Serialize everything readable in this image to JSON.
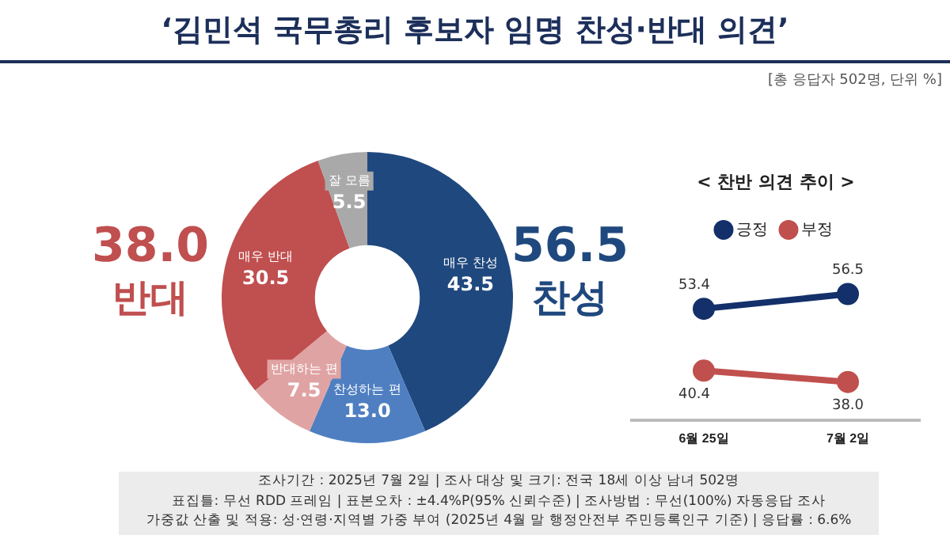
{
  "chart_data": [
    {
      "type": "donut",
      "title": "‘김민석 국무총리 후보자 임명 찬성·반대 의견’",
      "categories": [
        "매우 찬성",
        "찬성하는 편",
        "반대하는 편",
        "매우 반대",
        "잘 모름"
      ],
      "values": [
        43.5,
        13.0,
        7.5,
        30.5,
        5.5
      ],
      "value_labels": [
        "43.5",
        "13.0",
        "7.5",
        "30.5",
        "5.5"
      ],
      "colors": [
        "#1f487e",
        "#4f7fc1",
        "#e0a3a3",
        "#c04f4f",
        "#a9a9a9"
      ],
      "annotations": [
        "[총 응답자 502명, 단위 %]",
        "38.0",
        "반대",
        "56.5",
        "찬성",
        "조사기간 : 2025년 7월 2일 | 조사 대상 및 크기: 전국 18세 이상 남녀 502명",
        "표집틀: 무선 RDD 프레임 | 표본오차 : ±4.4%P(95% 신뢰수준) | 조사방법 : 무선(100%) 자동응답 조사",
        "가중값 산출 및 적용: 성·연령·지역별 가중 부여 (2025년 4월 말 행정안전부 주민등록인구 기준) | 응답률 : 6.6%"
      ],
      "legend": false
    },
    {
      "type": "line",
      "title": "< 찬반 의견 추이 >",
      "categories": [
        "6월 25일",
        "7월 2일"
      ],
      "series": [
        {
          "name": "긍정",
          "color": "#13306a",
          "values": [
            53.4,
            56.5
          ],
          "value_labels": [
            "53.4",
            "56.5"
          ]
        },
        {
          "name": "부정",
          "color": "#c0504d",
          "values": [
            40.4,
            38.0
          ],
          "value_labels": [
            "40.4",
            "38.0"
          ]
        }
      ],
      "tick_labels": "x",
      "legend": "top",
      "marker": "circle",
      "grid": false
    }
  ]
}
